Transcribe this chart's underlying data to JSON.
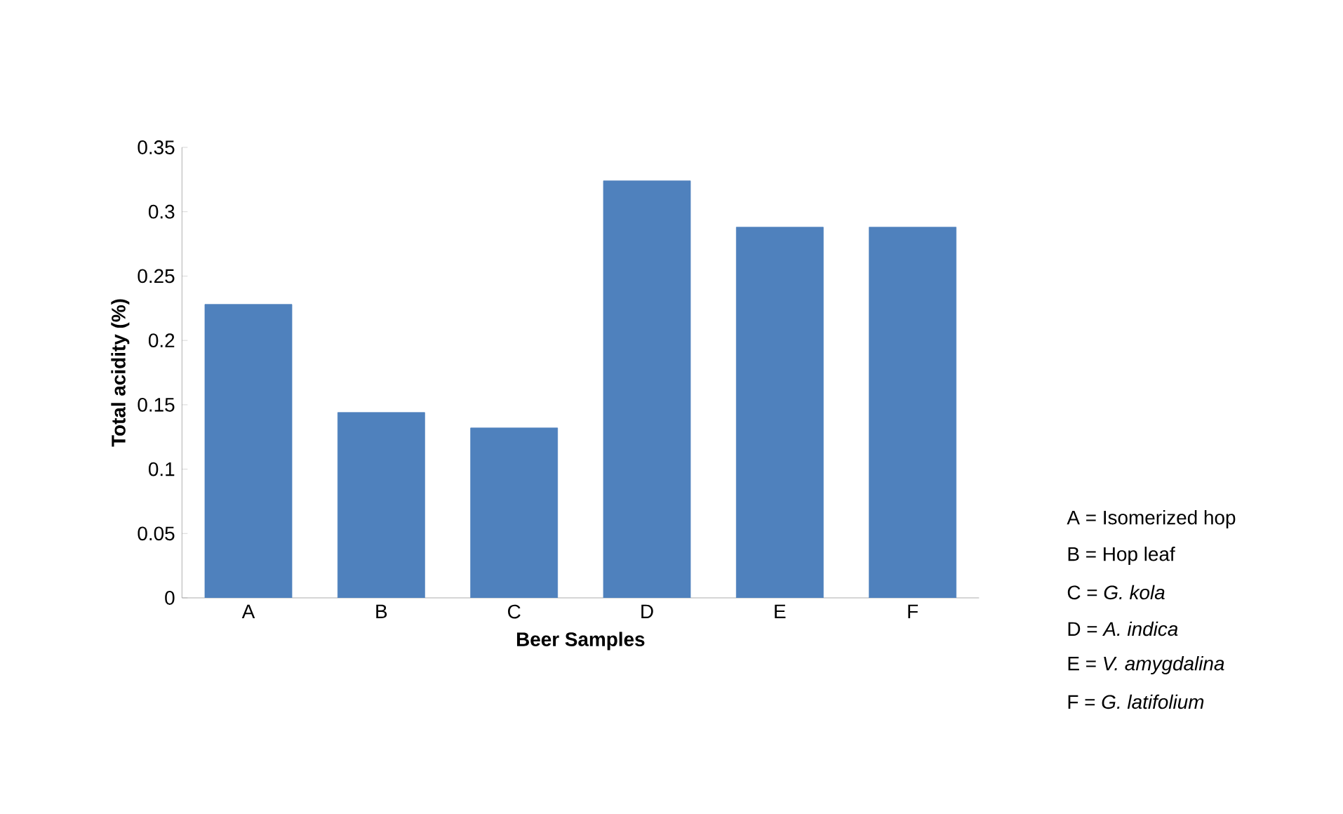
{
  "chart_data": {
    "type": "bar",
    "xlabel": "Beer Samples",
    "ylabel": "Total acidity (%)",
    "categories": [
      "A",
      "B",
      "C",
      "D",
      "E",
      "F"
    ],
    "values": [
      0.228,
      0.144,
      0.132,
      0.324,
      0.288,
      0.288
    ],
    "color": "#4f81bd",
    "ylim": [
      0,
      0.35
    ],
    "yticks": [
      0,
      0.05,
      0.1,
      0.15,
      0.2,
      0.25,
      0.3,
      0.35
    ],
    "annotations": [
      "A = Isomerized hop",
      "B = Hop leaf",
      "C = *G. kola*",
      "D = *A. indica*",
      "E = *V. amygdalina*",
      "F = *G. latifolium*"
    ]
  }
}
